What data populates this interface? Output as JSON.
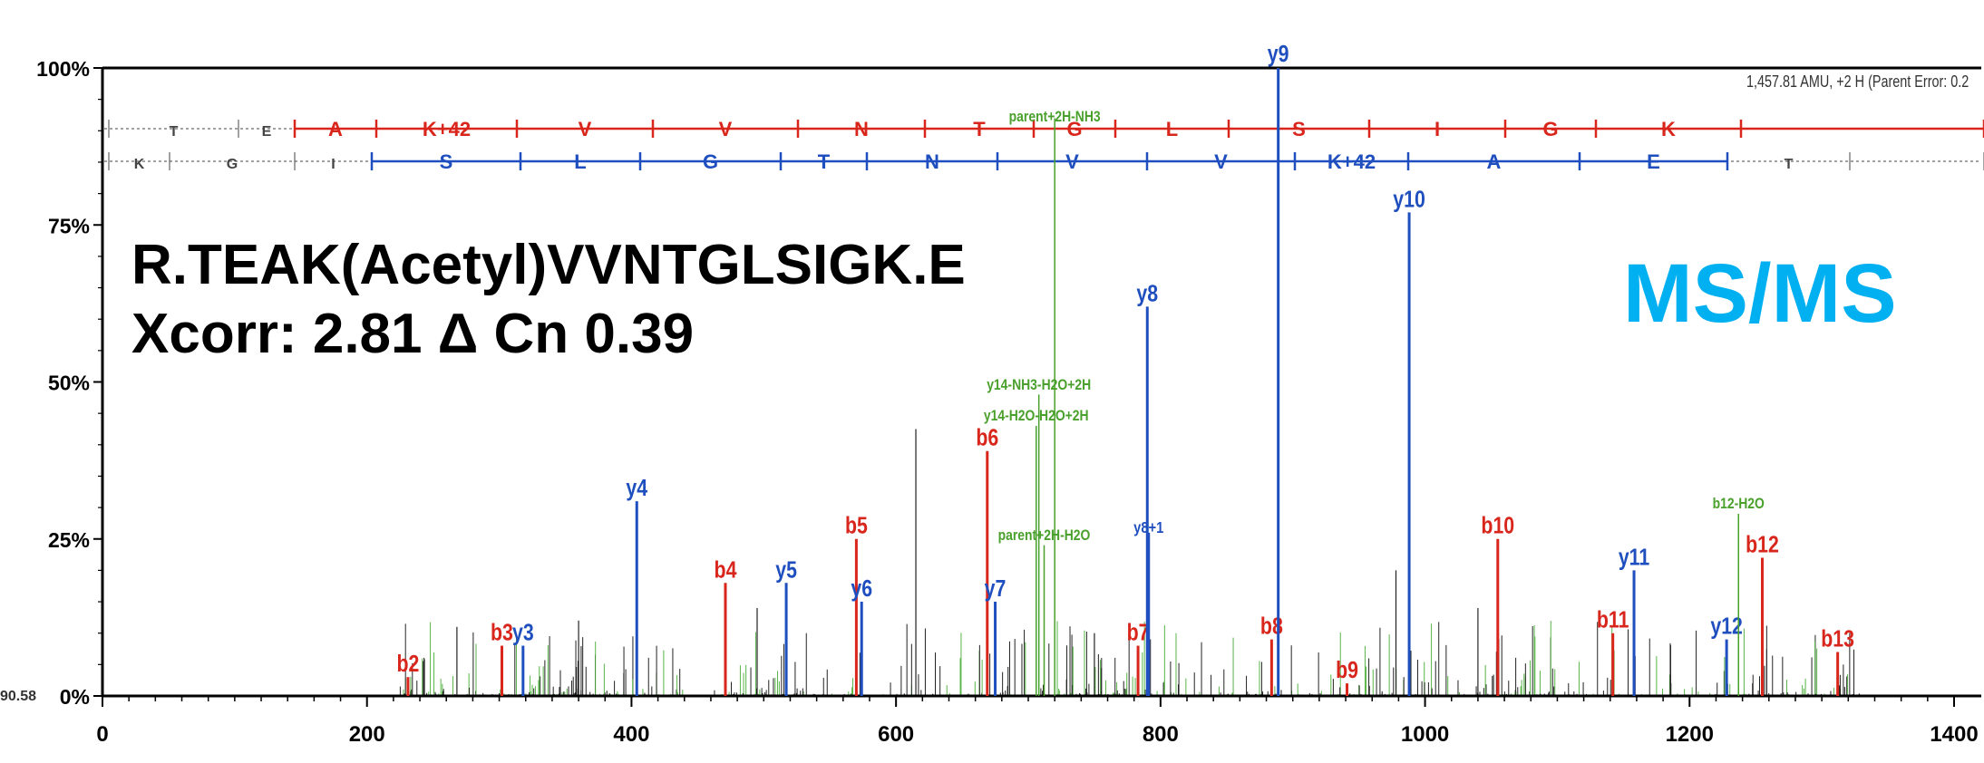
{
  "peptide": "R.TEAK(Acetyl)VVNTGLSIGK.E",
  "score_line": "Xcorr: 2.81 Δ Cn 0.39",
  "method_label": "MS/MS",
  "parent_info": "1,457.81 AMU, +2 H (Parent Error: 0.2",
  "corner_text": "90.58",
  "colors": {
    "b": "#d9261c",
    "y": "#1f4fbf",
    "neutral": "#4aa02c",
    "noise": "#222222",
    "method": "#00b0f0"
  },
  "chart_data": {
    "type": "bar",
    "title": "",
    "xlabel": "",
    "ylabel": "",
    "xlim": [
      0,
      1400
    ],
    "ylim": [
      0,
      100
    ],
    "x_ticks": [
      "0",
      "200",
      "400",
      "600",
      "800",
      "1000",
      "1200",
      "1400"
    ],
    "y_ticks": [
      "0%",
      "25%",
      "50%",
      "75%",
      "100%"
    ],
    "series": [
      {
        "name": "b",
        "peaks": [
          {
            "label": "b2",
            "mz": 231,
            "intensity": 3
          },
          {
            "label": "b3",
            "mz": 302,
            "intensity": 8
          },
          {
            "label": "b4",
            "mz": 471,
            "intensity": 18
          },
          {
            "label": "b5",
            "mz": 570,
            "intensity": 25
          },
          {
            "label": "b6",
            "mz": 669,
            "intensity": 39
          },
          {
            "label": "b7",
            "mz": 783,
            "intensity": 8
          },
          {
            "label": "b8",
            "mz": 884,
            "intensity": 9
          },
          {
            "label": "b9",
            "mz": 941,
            "intensity": 2
          },
          {
            "label": "b10",
            "mz": 1055,
            "intensity": 25
          },
          {
            "label": "b11",
            "mz": 1142,
            "intensity": 10
          },
          {
            "label": "b12",
            "mz": 1255,
            "intensity": 22
          },
          {
            "label": "b13",
            "mz": 1312,
            "intensity": 7
          }
        ]
      },
      {
        "name": "y",
        "peaks": [
          {
            "label": "y3",
            "mz": 318,
            "intensity": 8
          },
          {
            "label": "y4",
            "mz": 404,
            "intensity": 31
          },
          {
            "label": "y5",
            "mz": 517,
            "intensity": 18
          },
          {
            "label": "y6",
            "mz": 574,
            "intensity": 15
          },
          {
            "label": "y7",
            "mz": 675,
            "intensity": 15
          },
          {
            "label": "y8",
            "mz": 790,
            "intensity": 62
          },
          {
            "label": "y8+1",
            "mz": 791,
            "intensity": 26
          },
          {
            "label": "y9",
            "mz": 889,
            "intensity": 100
          },
          {
            "label": "y10",
            "mz": 988,
            "intensity": 77
          },
          {
            "label": "y11",
            "mz": 1158,
            "intensity": 20
          },
          {
            "label": "y12",
            "mz": 1228,
            "intensity": 9
          }
        ]
      },
      {
        "name": "neutral loss",
        "peaks": [
          {
            "label": "parent+2H-NH3",
            "mz": 720,
            "intensity": 92
          },
          {
            "label": "parent+2H-H2O",
            "mz": 712,
            "intensity": 24
          },
          {
            "label": "y14-NH3-H2O+2H",
            "mz": 708,
            "intensity": 48
          },
          {
            "label": "y14-H2O-H2O+2H",
            "mz": 706,
            "intensity": 43
          },
          {
            "label": "b12-H2O",
            "mz": 1237,
            "intensity": 29
          }
        ]
      }
    ],
    "sequence_b": [
      "T",
      "E",
      "A",
      "K+42",
      "V",
      "V",
      "N",
      "T",
      "G",
      "L",
      "S",
      "I",
      "G",
      "K"
    ],
    "sequence_y": [
      "K",
      "G",
      "I",
      "S",
      "L",
      "G",
      "T",
      "N",
      "V",
      "V",
      "K+42",
      "A",
      "E",
      "T"
    ]
  }
}
